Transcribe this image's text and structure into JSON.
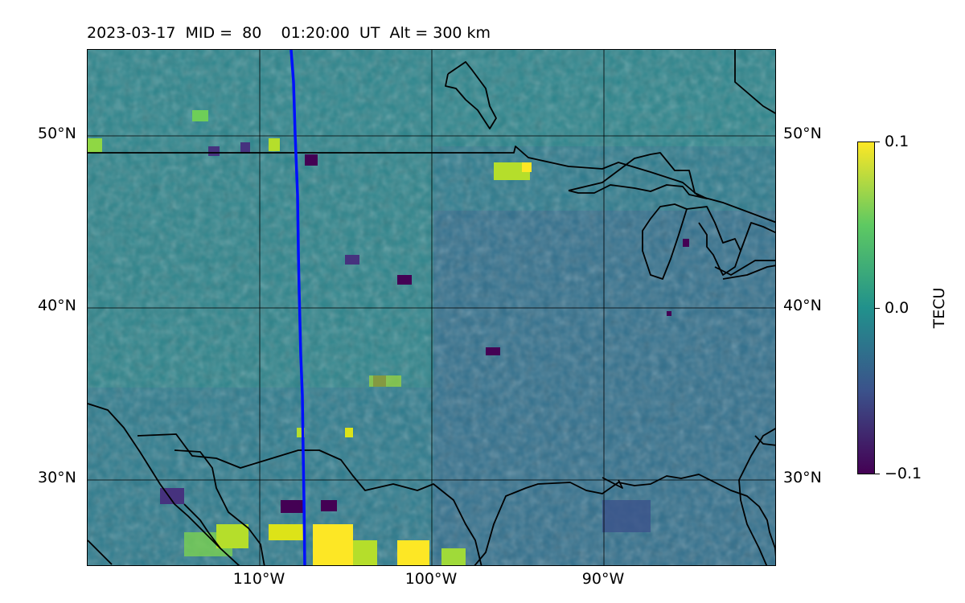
{
  "title": "2023-03-17  MID =  80    01:20:00  UT  Alt = 300 km",
  "map": {
    "lat_labels": [
      "50°N",
      "40°N",
      "30°N"
    ],
    "lon_labels": [
      "110°W",
      "100°W",
      "90°W"
    ],
    "colors": {
      "coastline": "#000000",
      "track": "#0010ff",
      "grid": "#000000"
    }
  },
  "colorbar": {
    "label": "TECU",
    "ticks": [
      "0.1",
      "0.0",
      "−0.1"
    ],
    "colormap": "viridis",
    "range": [
      -0.1,
      0.1
    ]
  }
}
